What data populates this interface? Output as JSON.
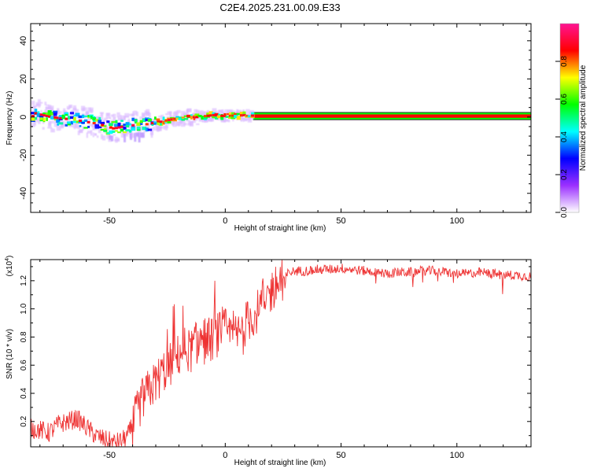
{
  "title": "C2E4.2025.231.00.09.E33",
  "chart_data": [
    {
      "type": "heatmap",
      "xlabel": "Height of straight line (km)",
      "ylabel": "Frequency (Hz)",
      "xlim": [
        -84,
        132
      ],
      "ylim": [
        -50,
        49
      ],
      "xticks": [
        -50,
        0,
        50,
        100
      ],
      "yticks": [
        -40,
        -20,
        0,
        20,
        40
      ],
      "grid": false,
      "colorbar": {
        "label": "Normalized spectral amplitude",
        "range": [
          0,
          1
        ],
        "ticks": [
          "0.0",
          "0.2",
          "0.4",
          "0.6",
          "0.8"
        ],
        "colors": [
          "#ffffff",
          "#9b30ff",
          "#0000ff",
          "#00ffff",
          "#00ff00",
          "#ffff00",
          "#ff0000",
          "#ff1493"
        ]
      },
      "band": {
        "x_range": [
          12,
          132
        ],
        "f_center": 0.5,
        "f_halfwidth": 1.5,
        "core_color": "#ff0000",
        "edge_color": "#00ff00"
      },
      "peak_track": [
        {
          "x": -82,
          "f": 2.0
        },
        {
          "x": -75,
          "f": 0.0
        },
        {
          "x": -65,
          "f": -1.5
        },
        {
          "x": -55,
          "f": -3.5
        },
        {
          "x": -48,
          "f": -6.0
        },
        {
          "x": -42,
          "f": -4.5
        },
        {
          "x": -35,
          "f": -4.0
        },
        {
          "x": -28,
          "f": -2.5
        },
        {
          "x": -20,
          "f": -0.5
        },
        {
          "x": -12,
          "f": 0.0
        },
        {
          "x": -5,
          "f": 1.0
        },
        {
          "x": 0,
          "f": 0.5
        },
        {
          "x": 8,
          "f": 1.0
        },
        {
          "x": 15,
          "f": 0.5
        }
      ]
    },
    {
      "type": "line",
      "xlabel": "Height of straight line (km)",
      "ylabel": "SNR (10 * v/v)",
      "y_multiplier": "(x10",
      "y_multiplier_exp": "4",
      "y_multiplier_close": ")",
      "xlim": [
        -84,
        132
      ],
      "ylim": [
        0.02,
        1.35
      ],
      "xticks": [
        -50,
        0,
        50,
        100
      ],
      "yticks": [
        "0.2",
        "0.4",
        "0.6",
        "0.8",
        "1.0",
        "1.2"
      ],
      "color": "#ee3333",
      "x": [
        -84,
        -80,
        -76,
        -72,
        -68,
        -64,
        -60,
        -56,
        -52,
        -48,
        -45,
        -42,
        -39,
        -36,
        -33,
        -30,
        -27,
        -24,
        -21,
        -18,
        -15,
        -12,
        -9,
        -6,
        -3,
        0,
        3,
        6,
        9,
        12,
        15,
        18,
        21,
        24,
        27,
        30,
        35,
        40,
        45,
        50,
        55,
        60,
        65,
        70,
        75,
        80,
        85,
        90,
        95,
        100,
        105,
        110,
        115,
        120,
        125,
        132
      ],
      "values": [
        0.15,
        0.14,
        0.12,
        0.18,
        0.2,
        0.22,
        0.16,
        0.1,
        0.07,
        0.05,
        0.06,
        0.1,
        0.22,
        0.35,
        0.42,
        0.48,
        0.55,
        0.6,
        0.65,
        0.72,
        0.7,
        0.76,
        0.8,
        0.78,
        0.82,
        0.85,
        0.8,
        0.82,
        0.9,
        0.95,
        1.0,
        1.08,
        1.15,
        1.2,
        1.25,
        1.27,
        1.27,
        1.28,
        1.28,
        1.29,
        1.28,
        1.27,
        1.26,
        1.25,
        1.26,
        1.26,
        1.27,
        1.27,
        1.26,
        1.25,
        1.25,
        1.26,
        1.25,
        1.24,
        1.24,
        1.23
      ]
    }
  ]
}
